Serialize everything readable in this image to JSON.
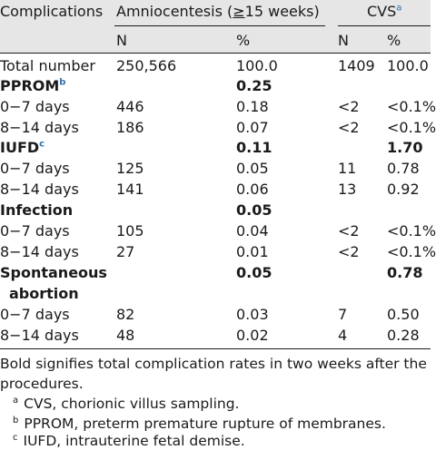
{
  "header": {
    "complications": "Complications",
    "amnio_group": "Amniocentesis (",
    "amnio_ge": "≥",
    "amnio_weeks": "15 weeks)",
    "cvs_group": "CVS",
    "cvs_sup": "a",
    "n1": "N",
    "pct1": "%",
    "n2": "N",
    "pct2": "%"
  },
  "rows": [
    {
      "label": "Total number",
      "bold": false,
      "n1": "250,566",
      "p1": "100.0",
      "n2": "1409",
      "p2": "100.0"
    },
    {
      "label": "PPROM",
      "sup": "b",
      "bold": true,
      "n1": "",
      "p1": "0.25",
      "n2": "",
      "p2": ""
    },
    {
      "label": "0−7 days",
      "bold": false,
      "n1": "446",
      "p1": "0.18",
      "n2": "<2",
      "p2": "<0.1%"
    },
    {
      "label": "8−14 days",
      "bold": false,
      "n1": "186",
      "p1": "0.07",
      "n2": "<2",
      "p2": "<0.1%"
    },
    {
      "label": "IUFD",
      "sup": "c",
      "bold": true,
      "n1": "",
      "p1": "0.11",
      "n2": "",
      "p2": "1.70"
    },
    {
      "label": "0−7 days",
      "bold": false,
      "n1": "125",
      "p1": "0.05",
      "n2": "11",
      "p2": "0.78"
    },
    {
      "label": "8−14 days",
      "bold": false,
      "n1": "141",
      "p1": "0.06",
      "n2": "13",
      "p2": "0.92"
    },
    {
      "label": "Infection",
      "bold": true,
      "n1": "",
      "p1": "0.05",
      "n2": "",
      "p2": ""
    },
    {
      "label": "0−7 days",
      "bold": false,
      "n1": "105",
      "p1": "0.04",
      "n2": "<2",
      "p2": "<0.1%"
    },
    {
      "label": "8−14 days",
      "bold": false,
      "n1": "27",
      "p1": "0.01",
      "n2": "<2",
      "p2": "<0.1%"
    },
    {
      "label": "Spontaneous",
      "label2": "abortion",
      "bold": true,
      "n1": "",
      "p1": "0.05",
      "n2": "",
      "p2": "0.78"
    },
    {
      "label": "0−7 days",
      "bold": false,
      "n1": "82",
      "p1": "0.03",
      "n2": "7",
      "p2": "0.50"
    },
    {
      "label": "8−14 days",
      "bold": false,
      "n1": "48",
      "p1": "0.02",
      "n2": "4",
      "p2": "0.28"
    }
  ],
  "notes": {
    "main1": "Bold signifies total complication rates in two weeks after the",
    "main2": "procedures.",
    "fn_a_mark": "a",
    "fn_a": "CVS, chorionic villus sampling.",
    "fn_b_mark": "b",
    "fn_b": "PPROM, preterm premature rupture of membranes.",
    "fn_c_mark": "c",
    "fn_c": "IUFD, intrauterine fetal demise."
  }
}
